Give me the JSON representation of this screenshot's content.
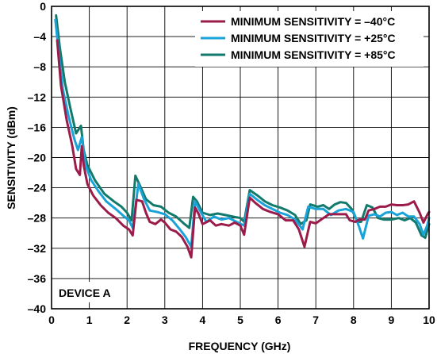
{
  "chart_data": {
    "type": "line",
    "xlabel": "FREQUENCY (GHz)",
    "ylabel": "SENSITIVITY (dBm)",
    "xlim": [
      0,
      10
    ],
    "ylim": [
      -40,
      0
    ],
    "x_ticks": [
      0,
      1,
      2,
      3,
      4,
      5,
      6,
      7,
      8,
      9,
      10
    ],
    "y_ticks": [
      0,
      -4,
      -8,
      -12,
      -16,
      -20,
      -24,
      -28,
      -32,
      -36,
      -40
    ],
    "x_tick_labels": [
      "0",
      "1",
      "2",
      "3",
      "4",
      "5",
      "6",
      "7",
      "8",
      "9",
      "10"
    ],
    "y_tick_labels": [
      "0",
      "–4",
      "–8",
      "–12",
      "–16",
      "–20",
      "–24",
      "–28",
      "–32",
      "–36",
      "–40"
    ],
    "grid": true,
    "legend_position": "top-right",
    "annotation": "DEVICE A",
    "series": [
      {
        "name": "MINIMUM SENSITIVITY = –40°C",
        "color": "#9b1c4a",
        "points": [
          [
            0.15,
            -4.5
          ],
          [
            0.25,
            -10.5
          ],
          [
            0.4,
            -15
          ],
          [
            0.55,
            -18.5
          ],
          [
            0.65,
            -21.5
          ],
          [
            0.75,
            -22.3
          ],
          [
            0.8,
            -18.5
          ],
          [
            0.85,
            -21
          ],
          [
            0.95,
            -23.5
          ],
          [
            1.1,
            -25
          ],
          [
            1.3,
            -26.3
          ],
          [
            1.5,
            -27.3
          ],
          [
            1.7,
            -28
          ],
          [
            1.9,
            -29
          ],
          [
            2.05,
            -29.5
          ],
          [
            2.15,
            -30.3
          ],
          [
            2.25,
            -25.6
          ],
          [
            2.4,
            -25.8
          ],
          [
            2.5,
            -27.3
          ],
          [
            2.6,
            -28.5
          ],
          [
            2.75,
            -28.8
          ],
          [
            2.9,
            -28.2
          ],
          [
            3.0,
            -28.6
          ],
          [
            3.15,
            -29.5
          ],
          [
            3.3,
            -29.8
          ],
          [
            3.45,
            -30.5
          ],
          [
            3.6,
            -31.8
          ],
          [
            3.7,
            -33.2
          ],
          [
            3.8,
            -26.6
          ],
          [
            3.9,
            -27.5
          ],
          [
            4.0,
            -28.8
          ],
          [
            4.2,
            -28.3
          ],
          [
            4.35,
            -29
          ],
          [
            4.5,
            -28.8
          ],
          [
            4.7,
            -29
          ],
          [
            4.85,
            -28.6
          ],
          [
            5.0,
            -29
          ],
          [
            5.1,
            -30.2
          ],
          [
            5.25,
            -25.3
          ],
          [
            5.4,
            -26
          ],
          [
            5.6,
            -26.8
          ],
          [
            5.8,
            -27.2
          ],
          [
            6.0,
            -27.5
          ],
          [
            6.2,
            -28.3
          ],
          [
            6.4,
            -28.3
          ],
          [
            6.55,
            -29.5
          ],
          [
            6.7,
            -31.8
          ],
          [
            6.85,
            -28.5
          ],
          [
            7.0,
            -28.7
          ],
          [
            7.2,
            -28
          ],
          [
            7.35,
            -27.5
          ],
          [
            7.5,
            -27.5
          ],
          [
            7.65,
            -27.5
          ],
          [
            7.8,
            -27.5
          ],
          [
            7.9,
            -28.3
          ],
          [
            8.05,
            -28.5
          ],
          [
            8.15,
            -28.2
          ],
          [
            8.3,
            -28.2
          ],
          [
            8.4,
            -27
          ],
          [
            8.55,
            -26.8
          ],
          [
            8.7,
            -26.5
          ],
          [
            8.85,
            -26.5
          ],
          [
            9.0,
            -26.2
          ],
          [
            9.15,
            -26.3
          ],
          [
            9.3,
            -26.3
          ],
          [
            9.45,
            -26.2
          ],
          [
            9.6,
            -25.8
          ],
          [
            9.75,
            -27.3
          ],
          [
            9.85,
            -28.6
          ],
          [
            9.95,
            -27.6
          ],
          [
            10.0,
            -27.2
          ]
        ]
      },
      {
        "name": "MINIMUM SENSITIVITY = +25°C",
        "color": "#1aa3d8",
        "points": [
          [
            0.1,
            -1.8
          ],
          [
            0.2,
            -6.5
          ],
          [
            0.3,
            -11
          ],
          [
            0.45,
            -14.5
          ],
          [
            0.6,
            -17.5
          ],
          [
            0.7,
            -19
          ],
          [
            0.8,
            -17.3
          ],
          [
            0.9,
            -21
          ],
          [
            1.05,
            -23
          ],
          [
            1.25,
            -24.5
          ],
          [
            1.45,
            -25.8
          ],
          [
            1.7,
            -26.8
          ],
          [
            1.9,
            -27.7
          ],
          [
            2.05,
            -28.3
          ],
          [
            2.15,
            -29.3
          ],
          [
            2.3,
            -23.5
          ],
          [
            2.45,
            -25.5
          ],
          [
            2.6,
            -27
          ],
          [
            2.8,
            -27.2
          ],
          [
            3.0,
            -27.5
          ],
          [
            3.2,
            -28.3
          ],
          [
            3.4,
            -29.5
          ],
          [
            3.55,
            -30.5
          ],
          [
            3.7,
            -31.8
          ],
          [
            3.8,
            -25.8
          ],
          [
            3.95,
            -27.2
          ],
          [
            4.1,
            -28.5
          ],
          [
            4.3,
            -27.8
          ],
          [
            4.5,
            -28.2
          ],
          [
            4.7,
            -28
          ],
          [
            4.9,
            -28.5
          ],
          [
            5.1,
            -29
          ],
          [
            5.25,
            -24.8
          ],
          [
            5.45,
            -25.6
          ],
          [
            5.65,
            -26.3
          ],
          [
            5.85,
            -26.8
          ],
          [
            6.05,
            -27.3
          ],
          [
            6.25,
            -27.6
          ],
          [
            6.45,
            -28.2
          ],
          [
            6.65,
            -29.5
          ],
          [
            6.8,
            -26.5
          ],
          [
            7.0,
            -26.8
          ],
          [
            7.2,
            -26.8
          ],
          [
            7.4,
            -27.6
          ],
          [
            7.6,
            -27
          ],
          [
            7.8,
            -26.8
          ],
          [
            8.0,
            -27.2
          ],
          [
            8.15,
            -29.2
          ],
          [
            8.25,
            -30.7
          ],
          [
            8.4,
            -27.7
          ],
          [
            8.55,
            -27.5
          ],
          [
            8.7,
            -27.8
          ],
          [
            8.85,
            -27.3
          ],
          [
            9.0,
            -27.2
          ],
          [
            9.15,
            -27.6
          ],
          [
            9.3,
            -27.3
          ],
          [
            9.45,
            -27.8
          ],
          [
            9.6,
            -27.8
          ],
          [
            9.75,
            -28.8
          ],
          [
            9.85,
            -30.2
          ],
          [
            9.95,
            -29
          ],
          [
            10.0,
            -28
          ]
        ]
      },
      {
        "name": "MINIMUM SENSITIVITY = +85°C",
        "color": "#127a6c",
        "points": [
          [
            0.12,
            -1.2
          ],
          [
            0.22,
            -5.5
          ],
          [
            0.35,
            -10
          ],
          [
            0.5,
            -13.5
          ],
          [
            0.65,
            -16.8
          ],
          [
            0.78,
            -15.8
          ],
          [
            0.85,
            -19
          ],
          [
            0.95,
            -21
          ],
          [
            1.15,
            -23
          ],
          [
            1.4,
            -24.8
          ],
          [
            1.65,
            -25.8
          ],
          [
            1.85,
            -26.5
          ],
          [
            2.0,
            -27.3
          ],
          [
            2.12,
            -28.3
          ],
          [
            2.22,
            -22.4
          ],
          [
            2.35,
            -23.8
          ],
          [
            2.5,
            -25.5
          ],
          [
            2.7,
            -26.3
          ],
          [
            2.9,
            -26.5
          ],
          [
            3.1,
            -27.3
          ],
          [
            3.3,
            -27.8
          ],
          [
            3.5,
            -28.7
          ],
          [
            3.65,
            -29.3
          ],
          [
            3.75,
            -25.2
          ],
          [
            3.85,
            -25.8
          ],
          [
            4.0,
            -27.3
          ],
          [
            4.2,
            -27.6
          ],
          [
            4.4,
            -27.4
          ],
          [
            4.6,
            -27.6
          ],
          [
            4.8,
            -27.8
          ],
          [
            5.0,
            -28
          ],
          [
            5.1,
            -28.5
          ],
          [
            5.25,
            -24.3
          ],
          [
            5.45,
            -25
          ],
          [
            5.65,
            -25.8
          ],
          [
            5.85,
            -26.3
          ],
          [
            6.05,
            -26.6
          ],
          [
            6.25,
            -27
          ],
          [
            6.45,
            -27.6
          ],
          [
            6.6,
            -28.8
          ],
          [
            6.75,
            -28.3
          ],
          [
            6.85,
            -26.2
          ],
          [
            7.05,
            -26.5
          ],
          [
            7.2,
            -26.3
          ],
          [
            7.35,
            -26.8
          ],
          [
            7.5,
            -26.2
          ],
          [
            7.65,
            -25.9
          ],
          [
            7.8,
            -26
          ],
          [
            7.95,
            -26.8
          ],
          [
            8.1,
            -28.5
          ],
          [
            8.2,
            -28.5
          ],
          [
            8.35,
            -26.3
          ],
          [
            8.5,
            -26.6
          ],
          [
            8.65,
            -28
          ],
          [
            8.8,
            -28.2
          ],
          [
            9.0,
            -28.2
          ],
          [
            9.2,
            -28
          ],
          [
            9.35,
            -28.3
          ],
          [
            9.5,
            -28
          ],
          [
            9.65,
            -28.6
          ],
          [
            9.8,
            -30.3
          ],
          [
            9.9,
            -30.6
          ],
          [
            10.0,
            -28.8
          ]
        ]
      }
    ]
  }
}
